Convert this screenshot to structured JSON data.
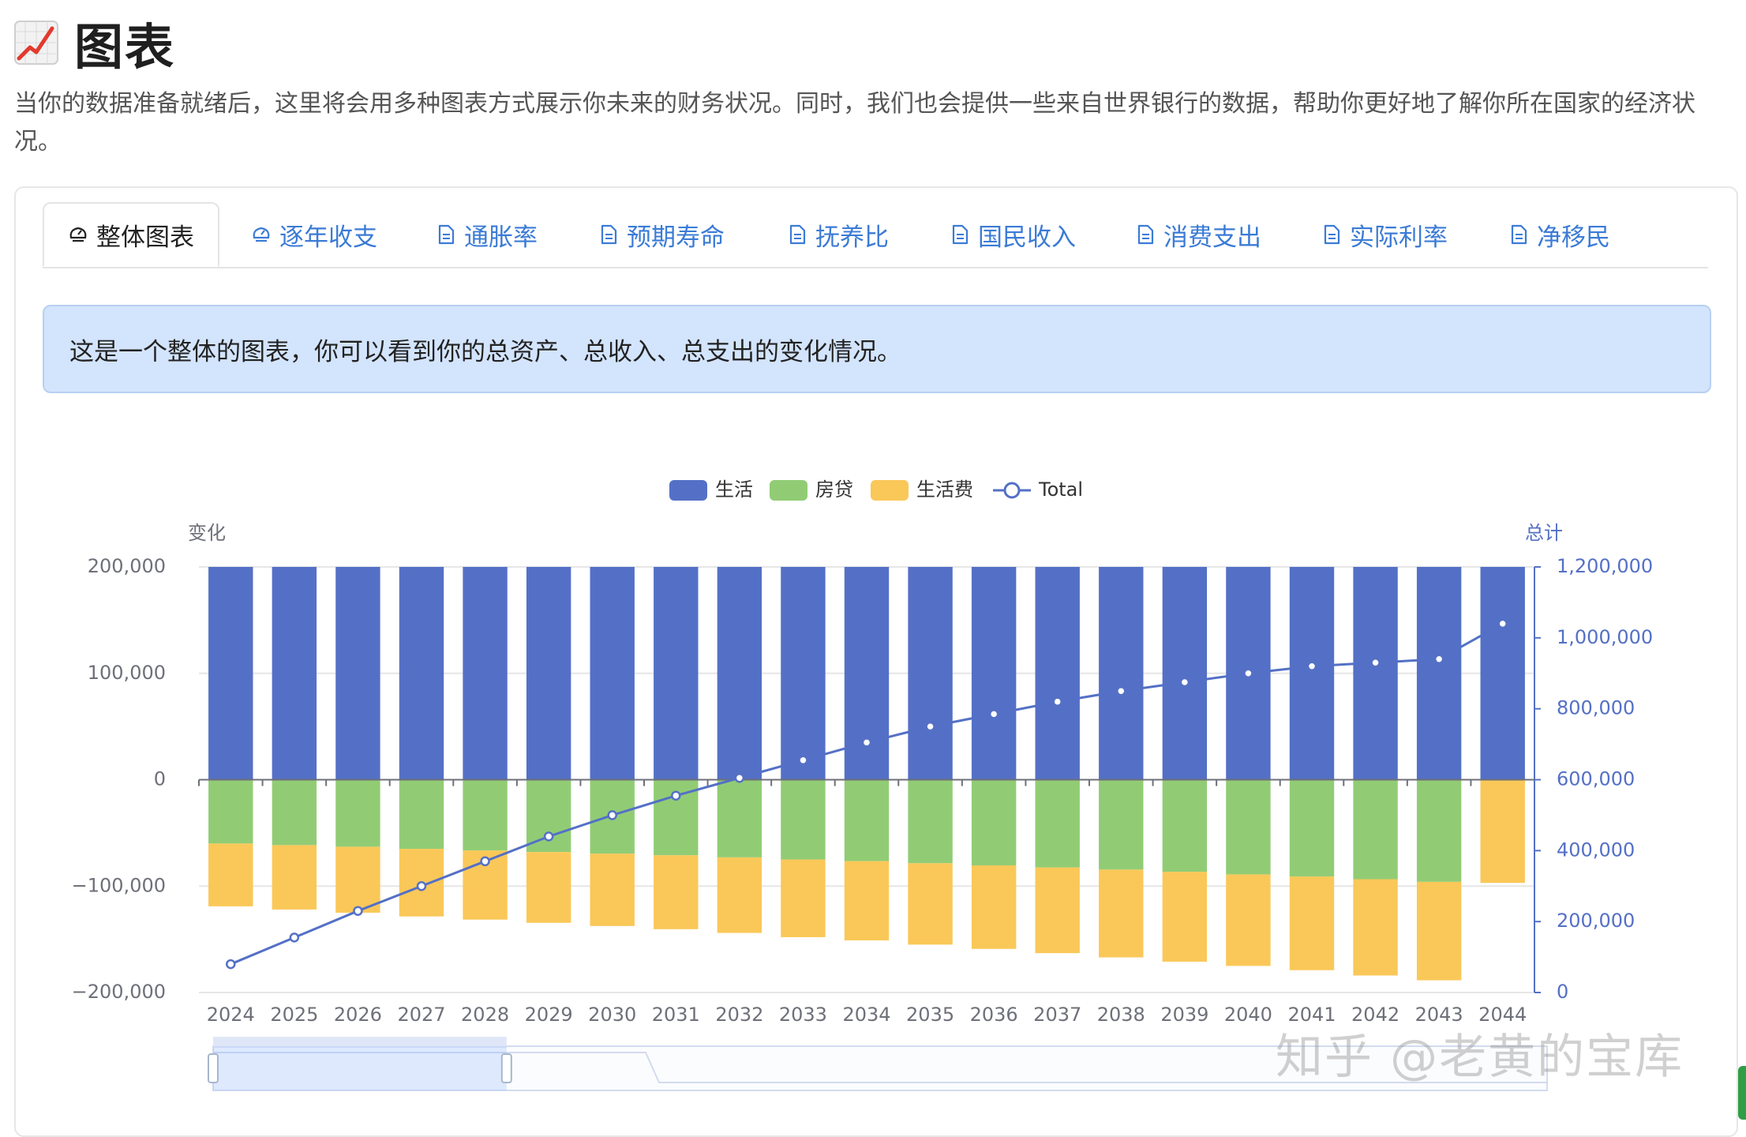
{
  "page": {
    "title": "图表",
    "description": "当你的数据准备就绪后，这里将会用多种图表方式展示你未来的财务状况。同时，我们也会提供一些来自世界银行的数据，帮助你更好地了解你所在国家的经济状况。"
  },
  "tabs": [
    {
      "label": "整体图表",
      "icon": "chart-icon",
      "active": true
    },
    {
      "label": "逐年收支",
      "icon": "chart-icon",
      "active": false
    },
    {
      "label": "通胀率",
      "icon": "document-icon",
      "active": false
    },
    {
      "label": "预期寿命",
      "icon": "document-icon",
      "active": false
    },
    {
      "label": "抚养比",
      "icon": "document-icon",
      "active": false
    },
    {
      "label": "国民收入",
      "icon": "document-icon",
      "active": false
    },
    {
      "label": "消费支出",
      "icon": "document-icon",
      "active": false
    },
    {
      "label": "实际利率",
      "icon": "document-icon",
      "active": false
    },
    {
      "label": "净移民",
      "icon": "document-icon",
      "active": false
    }
  ],
  "info": "这是一个整体的图表，你可以看到你的总资产、总收入、总支出的变化情况。",
  "watermark": "知乎 @老黄的宝库",
  "chart_data": {
    "type": "bar",
    "categories": [
      "2024",
      "2025",
      "2026",
      "2027",
      "2028",
      "2029",
      "2030",
      "2031",
      "2032",
      "2033",
      "2034",
      "2035",
      "2036",
      "2037",
      "2038",
      "2039",
      "2040",
      "2041",
      "2042",
      "2043",
      "2044"
    ],
    "y_left": {
      "name": "变化",
      "range": [
        -200000,
        200000
      ],
      "ticks": [
        200000,
        100000,
        0,
        -100000,
        -200000
      ],
      "tick_labels": [
        "200,000",
        "100,000",
        "0",
        "−100,000",
        "−200,000"
      ]
    },
    "y_right": {
      "name": "总计",
      "range": [
        0,
        1200000
      ],
      "ticks": [
        1200000,
        1000000,
        800000,
        600000,
        400000,
        200000,
        0
      ],
      "tick_labels": [
        "1,200,000",
        "1,000,000",
        "800,000",
        "600,000",
        "400,000",
        "200,000",
        "0"
      ]
    },
    "legend_position": "top",
    "grid": true,
    "series": [
      {
        "name": "生活",
        "type": "bar",
        "stack": "flow",
        "axis": "left",
        "color": "#5470c6",
        "values": [
          200000,
          200000,
          200000,
          200000,
          200000,
          200000,
          200000,
          200000,
          200000,
          200000,
          200000,
          200000,
          200000,
          200000,
          200000,
          200000,
          200000,
          200000,
          200000,
          200000,
          200000
        ]
      },
      {
        "name": "房贷",
        "type": "bar",
        "stack": "flow",
        "axis": "left",
        "color": "#91cc75",
        "values": [
          -60000,
          -61500,
          -63000,
          -65000,
          -66500,
          -68000,
          -69500,
          -71000,
          -73000,
          -75000,
          -76500,
          -78500,
          -80500,
          -82500,
          -84500,
          -86500,
          -89000,
          -91000,
          -93500,
          -96000,
          0
        ]
      },
      {
        "name": "生活费",
        "type": "bar",
        "stack": "flow",
        "axis": "left",
        "color": "#fac858",
        "values": [
          -59000,
          -60500,
          -62000,
          -63500,
          -65000,
          -66500,
          -68000,
          -69500,
          -71000,
          -73000,
          -74500,
          -76500,
          -78500,
          -80500,
          -82500,
          -84500,
          -86000,
          -88000,
          -90500,
          -92500,
          -97000
        ]
      },
      {
        "name": "Total",
        "type": "line",
        "axis": "right",
        "color": "#5470c6",
        "values": [
          80000,
          155000,
          230000,
          300000,
          370000,
          440000,
          500000,
          555000,
          605000,
          655000,
          705000,
          750000,
          785000,
          820000,
          850000,
          875000,
          900000,
          920000,
          930000,
          940000,
          1040000
        ]
      }
    ],
    "data_zoom": {
      "start_percent": 0,
      "end_percent": 22
    }
  },
  "colors": {
    "accent": "#3b7bd6",
    "info_bg": "#d3e4fd",
    "bar_blue": "#5470c6",
    "bar_green": "#91cc75",
    "bar_yellow": "#fac858"
  }
}
